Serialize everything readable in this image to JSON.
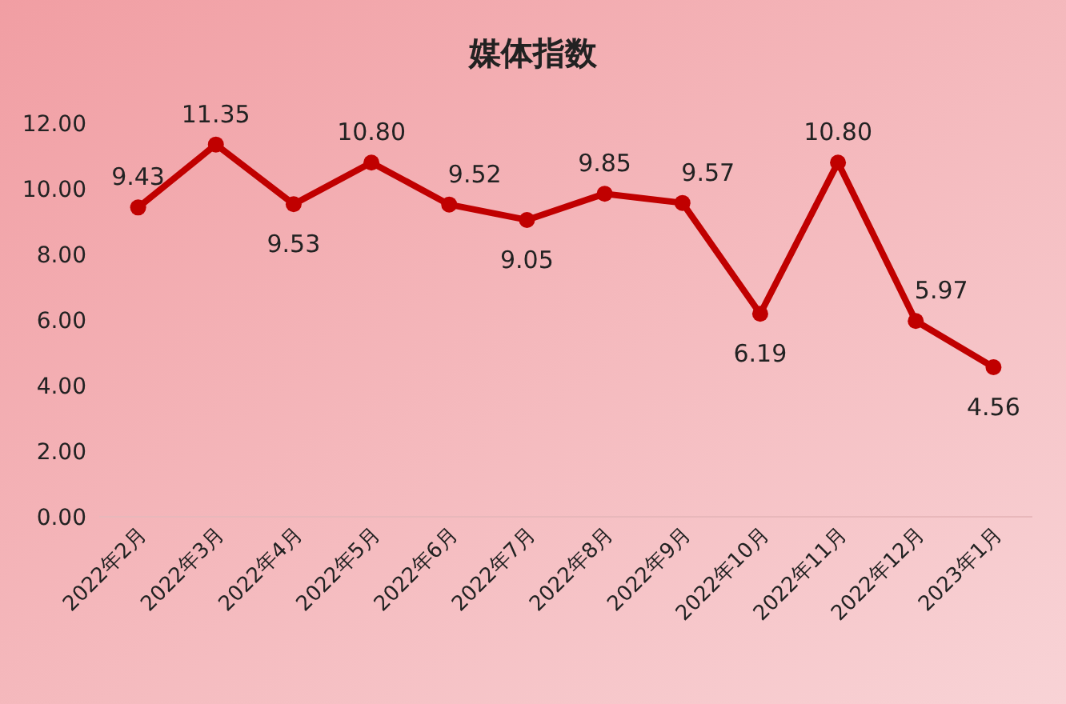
{
  "chart_data": {
    "type": "line",
    "title": "媒体指数",
    "categories": [
      "2022年2月",
      "2022年3月",
      "2022年4月",
      "2022年5月",
      "2022年6月",
      "2022年7月",
      "2022年8月",
      "2022年9月",
      "2022年10月",
      "2022年11月",
      "2022年12月",
      "2023年1月"
    ],
    "series": [
      {
        "color": "#c00000",
        "values": [
          9.43,
          11.35,
          9.53,
          10.8,
          9.52,
          9.05,
          9.85,
          9.57,
          6.19,
          10.8,
          5.97,
          4.56
        ],
        "value_labels": [
          "9.43",
          "11.35",
          "9.53",
          "10.80",
          "9.52",
          "9.05",
          "9.85",
          "9.57",
          "6.19",
          "10.80",
          "5.97",
          "4.56"
        ]
      }
    ],
    "ylim": [
      0,
      12
    ],
    "yticks": [
      {
        "value": 0,
        "label": "0.00"
      },
      {
        "value": 2,
        "label": "2.00"
      },
      {
        "value": 4,
        "label": "4.00"
      },
      {
        "value": 6,
        "label": "6.00"
      },
      {
        "value": 8,
        "label": "8.00"
      },
      {
        "value": 10,
        "label": "10.00"
      },
      {
        "value": 12,
        "label": "12.00"
      }
    ],
    "marker": "circle",
    "line_style": "solid"
  }
}
